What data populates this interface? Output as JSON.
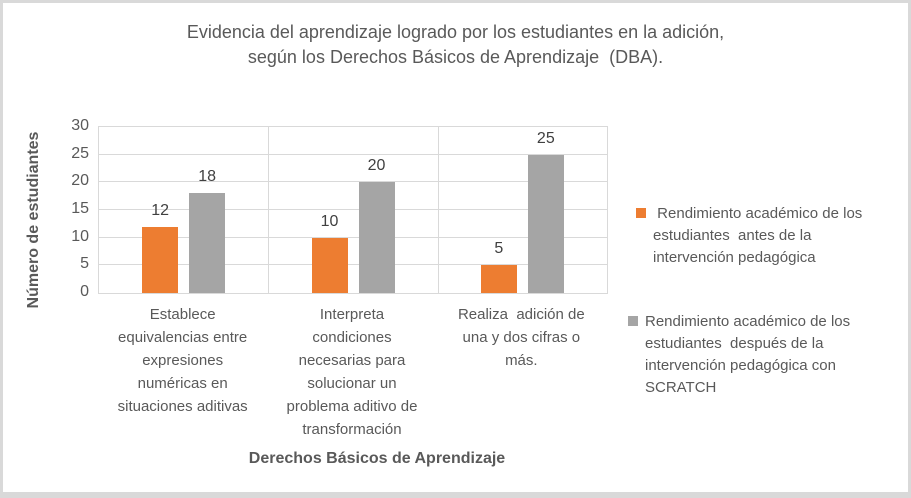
{
  "chart_data": {
    "type": "bar",
    "title": "Evidencia del aprendizaje logrado por los estudiantes en la adición, según los Derechos Básicos de Aprendizaje (DBA).",
    "categories": [
      "Establece equivalencias entre expresiones numéricas en situaciones aditivas",
      "Interpreta condiciones necesarias para solucionar un problema aditivo de transformación",
      "Realiza adición de una y dos cifras o más."
    ],
    "series": [
      {
        "name": "Rendimiento académico de los estudiantes antes de la intervención pedagógica",
        "color": "#ED7D31",
        "values": [
          12,
          10,
          5
        ]
      },
      {
        "name": "Rendimiento académico de los estudiantes después de la intervención pedagógica con SCRATCH",
        "color": "#A5A5A5",
        "values": [
          18,
          20,
          25
        ]
      }
    ],
    "xlabel": "Derechos Básicos de Aprendizaje",
    "ylabel": "Número de estudiantes",
    "ylim": [
      0,
      30
    ],
    "y_ticks": [
      0,
      5,
      10,
      15,
      20,
      25,
      30
    ],
    "grid": true,
    "legend_position": "right",
    "data_labels": true
  },
  "display": {
    "title_lines": [
      "Evidencia del aprendizaje logrado por los estudiantes en la adición,",
      "según los Derechos Básicos de Aprendizaje  (DBA)."
    ],
    "category_label_lines": [
      [
        "Establece",
        "equivalencias entre",
        "expresiones",
        "numéricas en",
        "situaciones aditivas"
      ],
      [
        "Interpreta",
        "condiciones",
        "necesarias para",
        "solucionar un",
        "problema aditivo de",
        "transformación"
      ],
      [
        "Realiza  adición de",
        "una y dos cifras o",
        "más."
      ]
    ],
    "legend_label_lines": [
      [
        " Rendimiento académico de los",
        "estudiantes  antes de la",
        "intervención pedagógica"
      ],
      [
        "Rendimiento académico de los",
        "estudiantes  después de la",
        "intervención pedagógica con",
        "SCRATCH"
      ]
    ],
    "y_axis_title": "Número de estudiantes",
    "x_axis_title": "Derechos Básicos de Aprendizaje"
  },
  "colors": {
    "series_before": "#ED7D31",
    "series_after": "#A5A5A5",
    "gridline": "#D9D9D9",
    "axis_text": "#595959",
    "data_label_text": "#404040",
    "outer_border": "#D9D9D9"
  }
}
